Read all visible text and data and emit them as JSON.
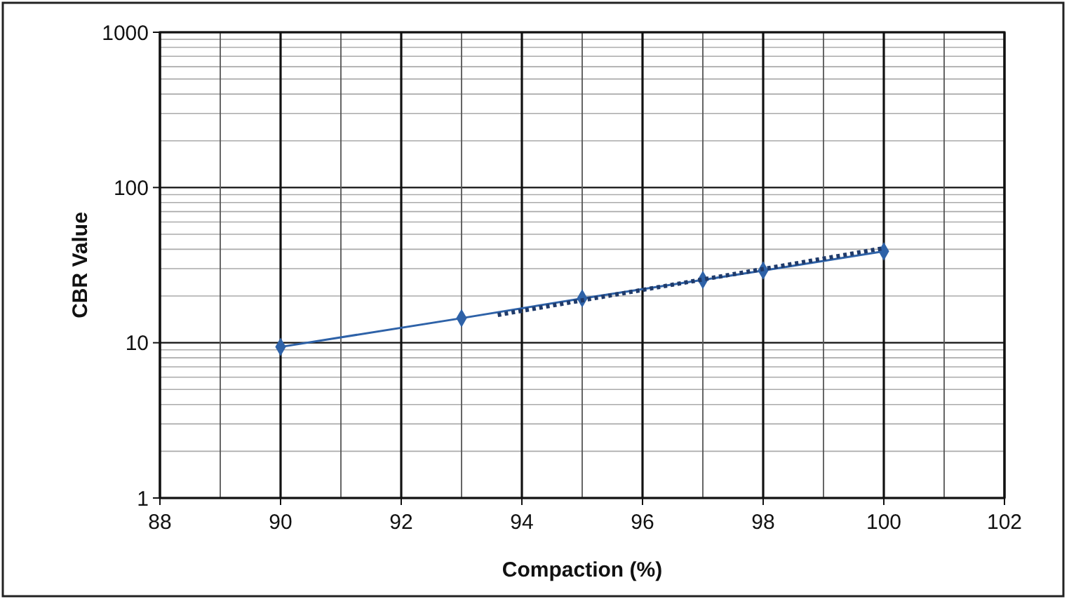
{
  "chart_data": {
    "type": "line",
    "xlabel": "Compaction (%)",
    "ylabel": "CBR Value",
    "log": "y",
    "grid": true,
    "marker": "diamond",
    "xlim": [
      88,
      102
    ],
    "xticks": [
      88,
      {
        "value": 89,
        "label": null
      },
      90,
      {
        "value": 91,
        "label": null
      },
      92,
      {
        "value": 93,
        "label": null
      },
      94,
      {
        "value": 95,
        "label": null
      },
      96,
      {
        "value": 97,
        "label": null
      },
      98,
      {
        "value": 99,
        "label": null
      },
      100,
      {
        "value": 101,
        "label": null
      },
      102
    ],
    "ylim": [
      1,
      1000
    ],
    "yticks": [
      1,
      {
        "value": 2,
        "label": null
      },
      {
        "value": 3,
        "label": null
      },
      {
        "value": 4,
        "label": null
      },
      {
        "value": 5,
        "label": null
      },
      {
        "value": 6,
        "label": null
      },
      {
        "value": 7,
        "label": null
      },
      {
        "value": 8,
        "label": null
      },
      {
        "value": 9,
        "label": null
      },
      10,
      {
        "value": 20,
        "label": null
      },
      {
        "value": 30,
        "label": null
      },
      {
        "value": 40,
        "label": null
      },
      {
        "value": 50,
        "label": null
      },
      {
        "value": 60,
        "label": null
      },
      {
        "value": 70,
        "label": null
      },
      {
        "value": 80,
        "label": null
      },
      {
        "value": 90,
        "label": null
      },
      100,
      {
        "value": 200,
        "label": null
      },
      {
        "value": 300,
        "label": null
      },
      {
        "value": 400,
        "label": null
      },
      {
        "value": 500,
        "label": null
      },
      {
        "value": 600,
        "label": null
      },
      {
        "value": 700,
        "label": null
      },
      {
        "value": 800,
        "label": null
      },
      {
        "value": 900,
        "label": null
      },
      1000
    ],
    "series": [
      {
        "color": "#2e62a8",
        "x": [
          90,
          93,
          95,
          97,
          98,
          100
        ],
        "values": [
          9.4,
          14.4,
          19.3,
          25.4,
          29.2,
          38.8
        ]
      },
      {
        "type": "line",
        "color": "#1f3a6a",
        "marker": "none",
        "line_style": "dotted",
        "x": [
          93.6,
          100
        ],
        "values": [
          15.1,
          40.7
        ]
      }
    ]
  }
}
